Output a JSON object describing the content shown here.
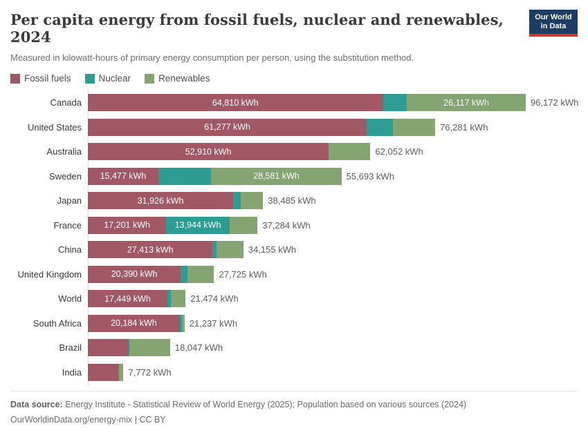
{
  "header": {
    "title": "Per capita energy from fossil fuels, nuclear and renewables, 2024",
    "subtitle": "Measured in kilowatt-hours of primary energy consumption per person, using the substitution method.",
    "logo_line1": "Our World",
    "logo_line2": "in Data"
  },
  "legend": [
    {
      "id": "fossil-fuels",
      "label": "Fossil fuels",
      "color": "#a15864"
    },
    {
      "id": "nuclear",
      "label": "Nuclear",
      "color": "#2d9c93"
    },
    {
      "id": "renewables",
      "label": "Renewables",
      "color": "#84a471"
    }
  ],
  "chart_data": {
    "type": "bar",
    "orientation": "horizontal",
    "stacked": true,
    "unit": "kWh",
    "xlim": [
      0,
      96172
    ],
    "categories": [
      "Canada",
      "United States",
      "Australia",
      "Sweden",
      "Japan",
      "France",
      "China",
      "United Kingdom",
      "World",
      "South Africa",
      "Brazil",
      "India"
    ],
    "series": [
      {
        "id": "fossil-fuels",
        "name": "Fossil fuels",
        "color": "#a15864",
        "values": [
          64810,
          61277,
          52910,
          15477,
          31926,
          17201,
          27413,
          20390,
          17449,
          20184,
          8900,
          6760
        ]
      },
      {
        "id": "nuclear",
        "name": "Nuclear",
        "color": "#2d9c93",
        "values": [
          5245,
          5750,
          0,
          11635,
          1660,
          13944,
          845,
          1450,
          780,
          460,
          170,
          100
        ]
      },
      {
        "id": "renewables",
        "name": "Renewables",
        "color": "#84a471",
        "values": [
          26117,
          9254,
          9142,
          28581,
          4899,
          6139,
          5897,
          5885,
          3245,
          593,
          8977,
          912
        ]
      }
    ],
    "totals": [
      96172,
      76281,
      62052,
      55693,
      38485,
      37284,
      34155,
      27725,
      21474,
      21237,
      18047,
      7772
    ],
    "display": {
      "segment_labels": [
        [
          "64,810 kWh",
          null,
          "26,117 kWh"
        ],
        [
          "61,277 kWh",
          null,
          null
        ],
        [
          "52,910 kWh",
          null,
          null
        ],
        [
          "15,477 kWh",
          null,
          "28,581 kWh"
        ],
        [
          "31,926 kWh",
          null,
          null
        ],
        [
          "17,201 kWh",
          "13,944 kWh",
          null
        ],
        [
          "27,413 kWh",
          null,
          null
        ],
        [
          "20,390 kWh",
          null,
          null
        ],
        [
          "17,449 kWh",
          null,
          null
        ],
        [
          "20,184 kWh",
          null,
          null
        ],
        [
          null,
          null,
          null
        ],
        [
          null,
          null,
          null
        ]
      ],
      "total_labels": [
        "96,172 kWh",
        "76,281 kWh",
        "62,052 kWh",
        "55,693 kWh",
        "38,485 kWh",
        "37,284 kWh",
        "34,155 kWh",
        "27,725 kWh",
        "21,474 kWh",
        "21,237 kWh",
        "18,047 kWh",
        "7,772 kWh"
      ]
    }
  },
  "footer": {
    "source_prefix": "Data source:",
    "source_text": " Energy Institute - Statistical Review of World Energy (2025); Population based on various sources (2024)",
    "link": "OurWorldinData.org/energy-mix",
    "separator": " | ",
    "license": "CC BY"
  }
}
